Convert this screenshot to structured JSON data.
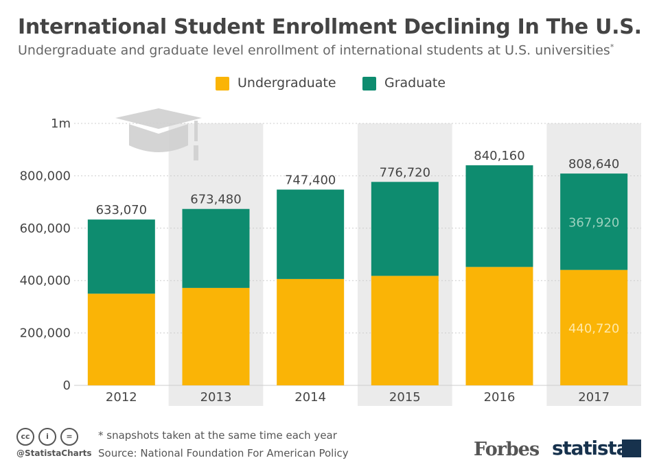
{
  "header": {
    "title": "International Student Enrollment Declining In The U.S.",
    "subtitle": "Undergraduate and graduate level enrollment of international students at U.S. universities",
    "subtitle_mark": "*"
  },
  "legend": {
    "undergraduate_label": "Undergraduate",
    "graduate_label": "Graduate"
  },
  "colors": {
    "undergraduate": "#FAB406",
    "graduate": "#0E8C6F",
    "band": "#EBEBEB",
    "grid": "#CCCCCC",
    "inner_label": "#9BD1BE",
    "inner_label_undergrad": "#FFE9A8"
  },
  "chart_data": {
    "type": "bar",
    "stacked": true,
    "categories": [
      "2012",
      "2013",
      "2014",
      "2015",
      "2016",
      "2017"
    ],
    "series": [
      {
        "name": "Undergraduate",
        "values": [
          350000,
          372000,
          406000,
          418000,
          452000,
          440720
        ]
      },
      {
        "name": "Graduate",
        "values": [
          283070,
          301480,
          341400,
          358720,
          388160,
          367920
        ]
      }
    ],
    "totals": [
      633070,
      673480,
      747400,
      776720,
      840160,
      808640
    ],
    "total_labels": [
      "633,070",
      "673,480",
      "747,400",
      "776,720",
      "840,160",
      "808,640"
    ],
    "inner_labels": {
      "index": 5,
      "undergraduate": "440,720",
      "graduate": "367,920"
    },
    "yticks": [
      0,
      200000,
      400000,
      600000,
      800000,
      1000000
    ],
    "ytick_labels": [
      "0",
      "200,000",
      "400,000",
      "600,000",
      "800,000",
      "1m"
    ],
    "ylim": [
      0,
      1000000
    ],
    "shaded_columns": [
      1,
      3,
      5
    ],
    "grid": true,
    "legend_position": "top-center"
  },
  "footer": {
    "note": "* snapshots taken at the same time each year",
    "source": "Source: National Foundation For American Policy",
    "handle": "@StatistaCharts",
    "cc_icons": [
      "cc",
      "i",
      "="
    ],
    "forbes_logo": "Forbes",
    "statista_logo": "statista"
  }
}
